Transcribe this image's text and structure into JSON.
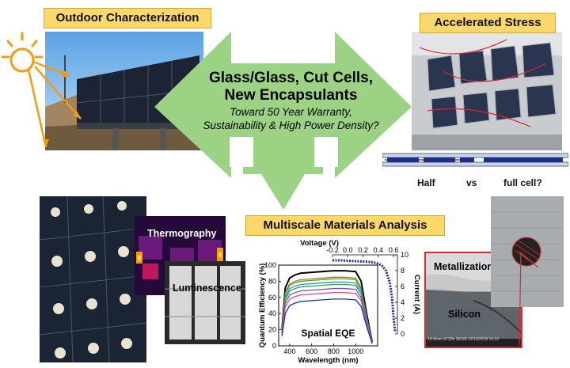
{
  "labels": {
    "outdoor": "Outdoor Characterization",
    "accelerated": "Accelerated Stress",
    "multiscale": "Multiscale Materials Analysis"
  },
  "center": {
    "line1": "Glass/Glass, Cut Cells,",
    "line2": "New Encapsulants",
    "sub1": "Toward 50 Year Warranty,",
    "sub2": "Sustainability & High Power Density?"
  },
  "cells": {
    "half": "Half",
    "vs": "vs",
    "full": "full cell?"
  },
  "imaging": {
    "thermography": "Thermography",
    "luminescence": "Luminescence"
  },
  "micro": {
    "metallization": "Metallization",
    "silicon": "Silicon",
    "caption": "14.9mm x2.20k SE(M) 12/19/2018 16:23"
  },
  "chart_data": {
    "type": "line",
    "title": "Spatial EQE",
    "xlabel": "Wavelength (nm)",
    "ylabel": "Quantum Efficiency (%)",
    "xlim": [
      300,
      1200
    ],
    "ylim": [
      0,
      100
    ],
    "x_ticks": [
      "400",
      "600",
      "800",
      "1000"
    ],
    "y_ticks": [
      "0",
      "20",
      "40",
      "60",
      "80",
      "100"
    ],
    "x": [
      330,
      360,
      400,
      450,
      500,
      600,
      700,
      800,
      900,
      1000,
      1050,
      1100,
      1150
    ],
    "series_colors": [
      "#000000",
      "#8a8a1a",
      "#6b8e23",
      "#1e9bd7",
      "#2aa84a",
      "#7b4fa8",
      "#e0499a",
      "#1a2db0"
    ],
    "series": [
      {
        "values": [
          20,
          72,
          84,
          88,
          90,
          91,
          92,
          93,
          93,
          92,
          80,
          40,
          5
        ]
      },
      {
        "values": [
          18,
          66,
          77,
          80,
          82,
          83,
          84,
          85,
          85,
          84,
          72,
          36,
          4
        ]
      },
      {
        "values": [
          18,
          64,
          75,
          78,
          80,
          81,
          82,
          83,
          83,
          82,
          70,
          35,
          4
        ]
      },
      {
        "values": [
          17,
          60,
          71,
          74,
          76,
          77,
          78,
          79,
          79,
          78,
          67,
          33,
          4
        ]
      },
      {
        "values": [
          16,
          57,
          68,
          71,
          73,
          74,
          75,
          76,
          76,
          75,
          64,
          31,
          4
        ]
      },
      {
        "values": [
          15,
          53,
          63,
          66,
          68,
          69,
          70,
          71,
          71,
          70,
          60,
          29,
          3
        ]
      },
      {
        "values": [
          14,
          48,
          58,
          61,
          63,
          64,
          65,
          66,
          66,
          65,
          56,
          27,
          3
        ]
      },
      {
        "values": [
          12,
          40,
          50,
          53,
          55,
          56,
          57,
          58,
          58,
          57,
          49,
          24,
          3
        ]
      }
    ],
    "iv": {
      "xlabel": "Voltage (V)",
      "ylabel": "Current (A)",
      "xlim": [
        -0.2,
        0.65
      ],
      "ylim": [
        0,
        10
      ],
      "x_ticks": [
        "-0.2",
        "0.0",
        "0.2",
        "0.4",
        "0.6"
      ],
      "y_ticks": [
        "0",
        "2",
        "4",
        "6",
        "8",
        "10"
      ],
      "v": [
        -0.2,
        -0.1,
        0.0,
        0.1,
        0.2,
        0.3,
        0.4,
        0.45,
        0.5,
        0.55,
        0.58,
        0.6,
        0.62
      ],
      "i": [
        9.3,
        9.3,
        9.25,
        9.2,
        9.15,
        9.1,
        8.9,
        8.6,
        8.0,
        6.5,
        4.5,
        2.0,
        0.2
      ]
    }
  }
}
